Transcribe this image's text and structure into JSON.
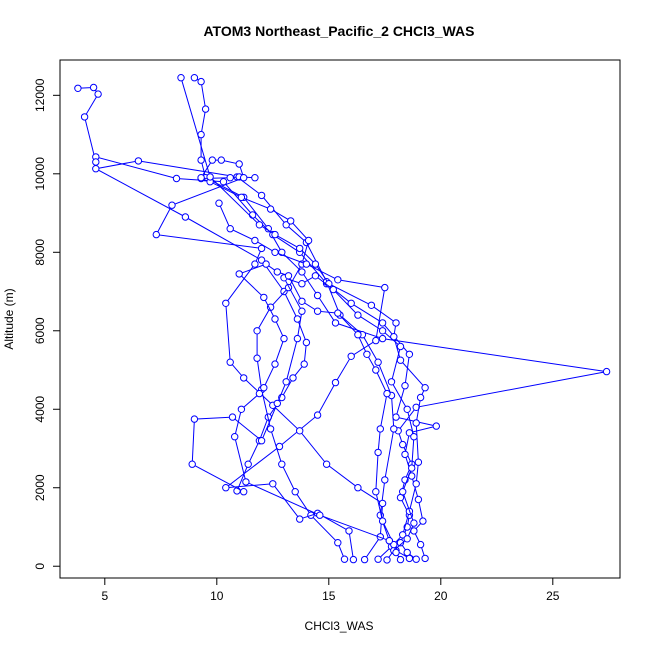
{
  "chart_data": {
    "type": "line",
    "title": "ATOM3 Northeast_Pacific_2 CHCl3_WAS",
    "xlabel": "CHCl3_WAS",
    "ylabel": "Altitude (m)",
    "xlim": [
      3,
      28
    ],
    "ylim": [
      -300,
      12900
    ],
    "xticks": [
      5,
      10,
      15,
      20,
      25
    ],
    "yticks": [
      0,
      2000,
      4000,
      6000,
      8000,
      10000,
      12000
    ],
    "series_color": "#0000ff",
    "series": [
      {
        "points": [
          [
            18.9,
            180
          ],
          [
            18.5,
            350
          ],
          [
            18.2,
            600
          ],
          [
            18.5,
            1000
          ],
          [
            18.6,
            1300
          ],
          [
            18.2,
            1750
          ],
          [
            18.4,
            2200
          ],
          [
            18.7,
            2600
          ],
          [
            18.3,
            3100
          ],
          [
            18.1,
            3450
          ],
          [
            18.9,
            4050
          ],
          [
            27.4,
            4960
          ],
          [
            17.4,
            5800
          ],
          [
            15.3,
            6200
          ],
          [
            14.5,
            6900
          ],
          [
            13.8,
            7500
          ],
          [
            12.9,
            8000
          ],
          [
            12.3,
            8600
          ],
          [
            11.2,
            9400
          ],
          [
            9.5,
            9900
          ],
          [
            9.3,
            10350
          ],
          [
            9.3,
            11000
          ],
          [
            9.5,
            11650
          ],
          [
            9.3,
            12350
          ],
          [
            9.0,
            12450
          ]
        ]
      },
      {
        "points": [
          [
            19.3,
            200
          ],
          [
            19.1,
            550
          ],
          [
            18.8,
            900
          ],
          [
            19.2,
            1150
          ],
          [
            19.0,
            1700
          ],
          [
            18.7,
            2300
          ],
          [
            18.4,
            2850
          ],
          [
            18.6,
            3400
          ],
          [
            19.8,
            3570
          ],
          [
            18.0,
            3800
          ],
          [
            18.4,
            4600
          ],
          [
            18.6,
            5400
          ],
          [
            17.4,
            6200
          ],
          [
            16.0,
            6700
          ],
          [
            14.9,
            7200
          ],
          [
            13.7,
            8000
          ],
          [
            12.5,
            8450
          ],
          [
            11.6,
            8950
          ],
          [
            10.3,
            9800
          ],
          [
            8.2,
            9880
          ],
          [
            4.6,
            10430
          ],
          [
            4.6,
            10300
          ],
          [
            4.1,
            11450
          ],
          [
            4.7,
            12030
          ],
          [
            4.5,
            12200
          ],
          [
            3.8,
            12180
          ]
        ]
      },
      {
        "points": [
          [
            18.6,
            200
          ],
          [
            18.0,
            400
          ],
          [
            17.7,
            650
          ],
          [
            17.3,
            1300
          ],
          [
            17.5,
            2200
          ],
          [
            17.9,
            3500
          ],
          [
            17.8,
            4350
          ],
          [
            17.2,
            5200
          ],
          [
            16.5,
            5900
          ],
          [
            15.5,
            6400
          ],
          [
            14.9,
            7250
          ],
          [
            14.0,
            8250
          ],
          [
            13.1,
            8700
          ],
          [
            12.0,
            9450
          ],
          [
            10.9,
            9920
          ],
          [
            6.5,
            10330
          ],
          [
            4.6,
            10130
          ],
          [
            8.6,
            8900
          ],
          [
            12.0,
            7800
          ],
          [
            13.0,
            7000
          ],
          [
            13.6,
            6300
          ],
          [
            14.0,
            5700
          ],
          [
            13.9,
            5150
          ],
          [
            13.4,
            4800
          ],
          [
            12.9,
            4300
          ],
          [
            12.3,
            3800
          ],
          [
            11.9,
            3200
          ],
          [
            11.4,
            2600
          ],
          [
            10.9,
            1920
          ]
        ]
      },
      {
        "points": [
          [
            15.7,
            180
          ],
          [
            15.4,
            600
          ],
          [
            14.2,
            1300
          ],
          [
            13.5,
            1900
          ],
          [
            12.9,
            2600
          ],
          [
            12.4,
            3500
          ],
          [
            12.0,
            4500
          ],
          [
            11.8,
            5300
          ],
          [
            11.8,
            6000
          ],
          [
            12.4,
            6600
          ],
          [
            13.2,
            7100
          ],
          [
            13.8,
            7700
          ],
          [
            14.1,
            8300
          ],
          [
            13.3,
            8800
          ],
          [
            12.4,
            9100
          ],
          [
            11.1,
            9400
          ],
          [
            9.7,
            9800
          ],
          [
            9.3,
            9880
          ],
          [
            10.6,
            9900
          ],
          [
            11.0,
            9920
          ],
          [
            11.7,
            9900
          ]
        ]
      },
      {
        "points": [
          [
            16.1,
            170
          ],
          [
            15.9,
            900
          ],
          [
            14.5,
            1350
          ],
          [
            13.7,
            1200
          ],
          [
            12.5,
            2100
          ],
          [
            10.4,
            2000
          ],
          [
            12.8,
            3050
          ],
          [
            14.5,
            3850
          ],
          [
            15.3,
            4680
          ],
          [
            16.0,
            5350
          ],
          [
            17.1,
            5750
          ],
          [
            17.5,
            7100
          ],
          [
            15.4,
            7300
          ],
          [
            14.0,
            7700
          ],
          [
            12.6,
            8000
          ],
          [
            11.7,
            8300
          ],
          [
            10.6,
            8600
          ],
          [
            10.1,
            9250
          ]
        ]
      },
      {
        "points": [
          [
            16.6,
            170
          ],
          [
            17.3,
            750
          ],
          [
            17.4,
            1600
          ],
          [
            16.3,
            2000
          ],
          [
            14.9,
            2600
          ],
          [
            13.7,
            3450
          ],
          [
            12.5,
            4100
          ],
          [
            11.2,
            4800
          ],
          [
            10.6,
            5200
          ],
          [
            10.4,
            6700
          ],
          [
            11.7,
            7700
          ],
          [
            12.0,
            8100
          ],
          [
            7.3,
            8450
          ],
          [
            8.0,
            9200
          ],
          [
            11.2,
            9900
          ],
          [
            11.0,
            10250
          ],
          [
            10.2,
            10350
          ],
          [
            9.8,
            10350
          ],
          [
            9.3,
            9900
          ]
        ]
      },
      {
        "points": [
          [
            17.2,
            180
          ],
          [
            17.8,
            500
          ],
          [
            18.3,
            800
          ],
          [
            18.6,
            1400
          ],
          [
            18.9,
            2100
          ],
          [
            19.0,
            2650
          ],
          [
            18.9,
            3650
          ],
          [
            19.1,
            4300
          ],
          [
            19.3,
            4550
          ],
          [
            18.2,
            5250
          ],
          [
            17.9,
            5850
          ],
          [
            18.0,
            6200
          ],
          [
            16.9,
            6650
          ],
          [
            15.0,
            7200
          ],
          [
            14.4,
            7700
          ],
          [
            13.7,
            8100
          ],
          [
            12.6,
            8450
          ],
          [
            11.9,
            8700
          ],
          [
            9.7,
            9920
          ],
          [
            8.4,
            12450
          ]
        ]
      },
      {
        "points": [
          [
            17.6,
            160
          ],
          [
            17.9,
            400
          ],
          [
            18.5,
            700
          ],
          [
            18.8,
            1100
          ],
          [
            18.3,
            1900
          ],
          [
            18.7,
            2500
          ],
          [
            18.8,
            3300
          ],
          [
            18.5,
            4000
          ],
          [
            17.8,
            4700
          ],
          [
            18.2,
            5600
          ],
          [
            17.4,
            6000
          ],
          [
            16.3,
            6400
          ],
          [
            15.2,
            7050
          ],
          [
            14.4,
            7400
          ],
          [
            13.8,
            7200
          ],
          [
            13.0,
            7350
          ],
          [
            13.8,
            6500
          ],
          [
            13.6,
            5800
          ],
          [
            13.1,
            4700
          ],
          [
            12.7,
            4150
          ],
          [
            12.0,
            3200
          ],
          [
            10.7,
            3800
          ],
          [
            9.0,
            3750
          ],
          [
            8.9,
            2600
          ],
          [
            11.2,
            1900
          ]
        ]
      },
      {
        "points": [
          [
            18.2,
            170
          ],
          [
            18.0,
            350
          ],
          [
            17.9,
            550
          ],
          [
            17.4,
            1150
          ],
          [
            17.1,
            1900
          ],
          [
            17.2,
            2900
          ],
          [
            17.3,
            3500
          ],
          [
            17.6,
            4400
          ],
          [
            17.1,
            5000
          ],
          [
            16.7,
            5400
          ],
          [
            16.3,
            5900
          ],
          [
            15.4,
            6450
          ],
          [
            14.5,
            6500
          ],
          [
            13.8,
            6750
          ],
          [
            13.2,
            7400
          ],
          [
            12.7,
            7500
          ],
          [
            12.2,
            7700
          ],
          [
            11.0,
            7450
          ],
          [
            12.1,
            6850
          ],
          [
            12.6,
            6300
          ],
          [
            13.0,
            5800
          ],
          [
            12.6,
            5150
          ],
          [
            12.1,
            4550
          ],
          [
            11.9,
            4400
          ],
          [
            11.1,
            4000
          ],
          [
            10.8,
            3300
          ],
          [
            11.3,
            2150
          ],
          [
            14.6,
            1300
          ],
          [
            17.7,
            650
          ]
        ]
      }
    ]
  }
}
